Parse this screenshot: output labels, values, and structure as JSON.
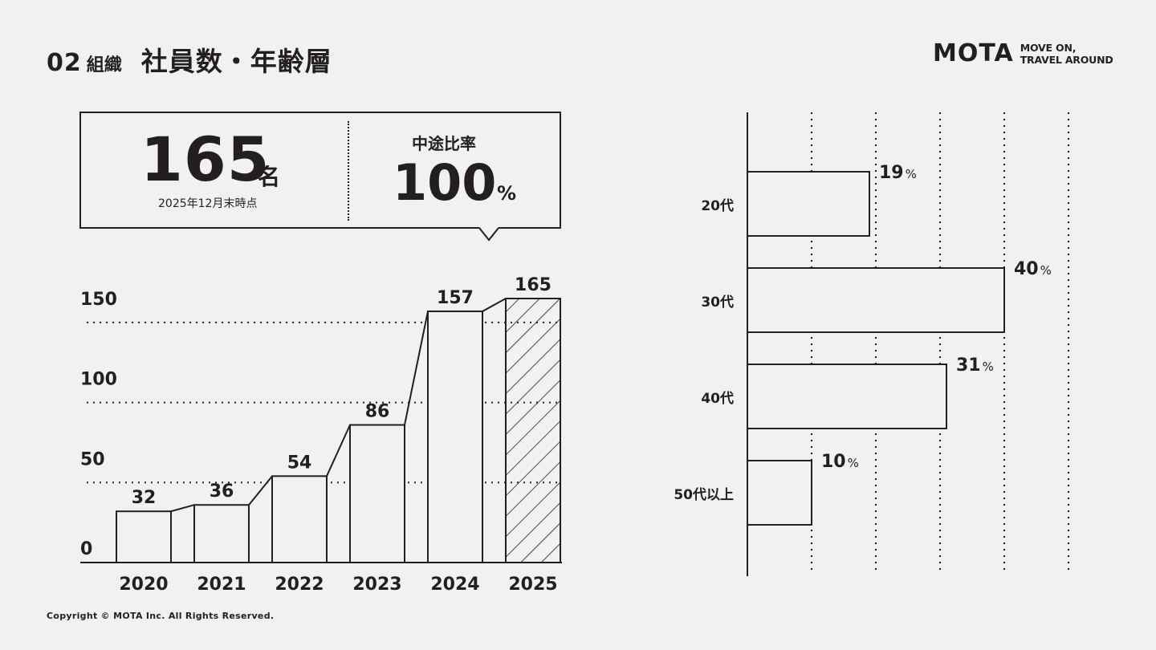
{
  "header": {
    "section_number": "02",
    "section_label": "組織",
    "title": "社員数・年齢層"
  },
  "logo": {
    "mark": "MOTA",
    "tagline_line1": "MOVE ON,",
    "tagline_line2": "TRAVEL AROUND"
  },
  "stats": {
    "employee_count": "165",
    "employee_unit": "名",
    "as_of_note": "2025年12月末時点",
    "midcareer_label": "中途比率",
    "midcareer_value": "100",
    "midcareer_unit": "%"
  },
  "chart_data": [
    {
      "type": "bar",
      "title": "社員数",
      "categories": [
        "2020",
        "2021",
        "2022",
        "2023",
        "2024",
        "2025"
      ],
      "values": [
        32,
        36,
        54,
        86,
        157,
        165
      ],
      "data_labels": [
        "32",
        "36",
        "54",
        "86",
        "157",
        "165"
      ],
      "highlight_category": "2025",
      "ylim": [
        0,
        165
      ],
      "yticks": [
        0,
        50,
        100,
        150
      ],
      "ytick_labels": [
        "0",
        "50",
        "100",
        "150"
      ],
      "xlabel": "",
      "ylabel": "",
      "grid": true
    },
    {
      "type": "bar",
      "orientation": "horizontal",
      "title": "年齢層",
      "categories": [
        "20代",
        "30代",
        "40代",
        "50代以上"
      ],
      "values": [
        19,
        40,
        31,
        10
      ],
      "value_labels": [
        "19",
        "40",
        "31",
        "10"
      ],
      "unit": "%",
      "xlim": [
        0,
        50
      ],
      "xticks": [
        10,
        20,
        30,
        40,
        50
      ],
      "grid": true
    }
  ],
  "footer": {
    "copyright": "Copyright © MOTA Inc. All Rights Reserved."
  }
}
